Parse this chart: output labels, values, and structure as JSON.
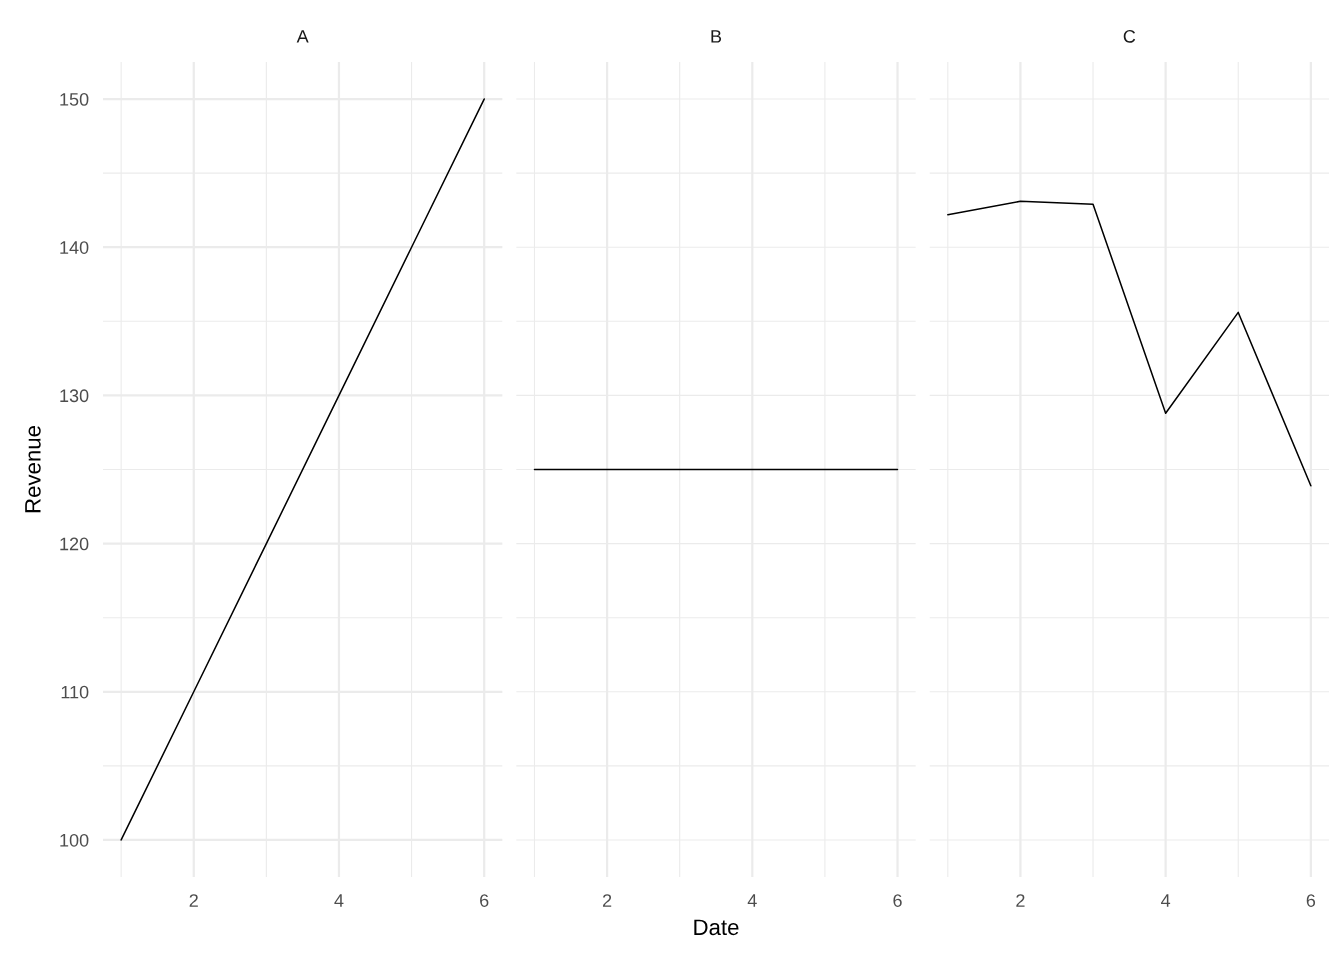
{
  "chart_data": [
    {
      "type": "line",
      "title": "A",
      "ylabel": "Revenue",
      "x": [
        1,
        2,
        3,
        4,
        5,
        6
      ],
      "values": [
        100,
        110,
        120,
        130,
        140,
        150
      ],
      "color": "#000000",
      "xlim": [
        0.75,
        6.25
      ],
      "ylim": [
        97.5,
        152.5
      ],
      "xticks": [
        {
          "value": 1,
          "label": null
        },
        2,
        {
          "value": 3,
          "label": null
        },
        4,
        {
          "value": 5,
          "label": null
        },
        6
      ],
      "yticks": [
        100,
        {
          "value": 105,
          "label": null
        },
        110,
        {
          "value": 115,
          "label": null
        },
        120,
        {
          "value": 125,
          "label": null
        },
        130,
        {
          "value": 135,
          "label": null
        },
        140,
        {
          "value": 145,
          "label": null
        },
        150
      ],
      "grid": true
    },
    {
      "type": "line",
      "title": "B",
      "xlabel": "Date",
      "x": [
        1,
        2,
        3,
        4,
        5,
        6
      ],
      "values": [
        125,
        125,
        125,
        125,
        125,
        125
      ],
      "color": "#000000",
      "xlim": [
        0.75,
        6.25
      ],
      "ylim": [
        97.5,
        152.5
      ],
      "xticks": [
        {
          "value": 1,
          "label": null
        },
        2,
        {
          "value": 3,
          "label": null
        },
        4,
        {
          "value": 5,
          "label": null
        },
        6
      ],
      "yticks": [
        {
          "value": 100,
          "label": null
        },
        {
          "value": 105,
          "label": null
        },
        {
          "value": 110,
          "label": null
        },
        {
          "value": 115,
          "label": null
        },
        {
          "value": 120,
          "label": null
        },
        {
          "value": 125,
          "label": null
        },
        {
          "value": 130,
          "label": null
        },
        {
          "value": 135,
          "label": null
        },
        {
          "value": 140,
          "label": null
        },
        {
          "value": 145,
          "label": null
        },
        {
          "value": 150,
          "label": null
        }
      ],
      "tick_labels": "x",
      "grid": true
    },
    {
      "type": "line",
      "title": "C",
      "x": [
        1,
        2,
        3,
        4,
        5,
        6
      ],
      "values": [
        142.2,
        143.1,
        142.9,
        128.8,
        135.6,
        123.9
      ],
      "color": "#000000",
      "xlim": [
        0.75,
        6.25
      ],
      "ylim": [
        97.5,
        152.5
      ],
      "xticks": [
        {
          "value": 1,
          "label": null
        },
        2,
        {
          "value": 3,
          "label": null
        },
        4,
        {
          "value": 5,
          "label": null
        },
        6
      ],
      "yticks": [
        {
          "value": 100,
          "label": null
        },
        {
          "value": 105,
          "label": null
        },
        {
          "value": 110,
          "label": null
        },
        {
          "value": 115,
          "label": null
        },
        {
          "value": 120,
          "label": null
        },
        {
          "value": 125,
          "label": null
        },
        {
          "value": 130,
          "label": null
        },
        {
          "value": 135,
          "label": null
        },
        {
          "value": 140,
          "label": null
        },
        {
          "value": 145,
          "label": null
        },
        {
          "value": 150,
          "label": null
        }
      ],
      "tick_labels": "x",
      "grid": true
    }
  ]
}
